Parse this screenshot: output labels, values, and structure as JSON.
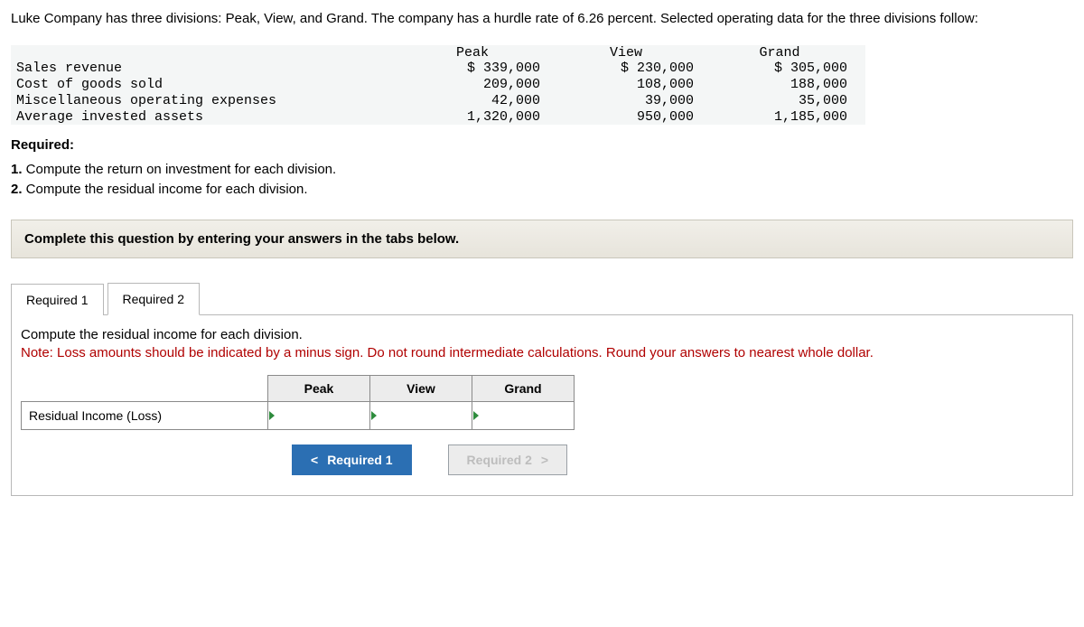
{
  "intro": "Luke Company has three divisions: Peak, View, and Grand. The company has a hurdle rate of 6.26 percent. Selected operating data for the three divisions follow:",
  "data_table": {
    "headers": {
      "c1": "Peak",
      "c2": "View",
      "c3": "Grand"
    },
    "rows": [
      {
        "label": "Sales revenue",
        "c1": "$ 339,000",
        "c2": "$ 230,000",
        "c3": "$ 305,000"
      },
      {
        "label": "Cost of goods sold",
        "c1": "209,000",
        "c2": "108,000",
        "c3": "188,000"
      },
      {
        "label": "Miscellaneous operating expenses",
        "c1": "42,000",
        "c2": "39,000",
        "c3": "35,000"
      },
      {
        "label": "Average invested assets",
        "c1": "1,320,000",
        "c2": "950,000",
        "c3": "1,185,000"
      }
    ],
    "colors": {
      "bg": "#f4f6f6"
    }
  },
  "required_heading": "Required:",
  "required_items": [
    {
      "num": "1.",
      "text": " Compute the return on investment for each division."
    },
    {
      "num": "2.",
      "text": " Compute the residual income for each division."
    }
  ],
  "instruction_bar": "Complete this question by entering your answers in the tabs below.",
  "tabs": {
    "t1": "Required 1",
    "t2": "Required 2",
    "active": "t2"
  },
  "panel": {
    "line1": "Compute the residual income for each division.",
    "note": "Note: Loss amounts should be indicated by a minus sign. Do not round intermediate calculations. Round your answers to nearest whole dollar.",
    "answer_headers": {
      "c1": "Peak",
      "c2": "View",
      "c3": "Grand"
    },
    "row_label": "Residual Income (Loss)"
  },
  "nav": {
    "prev_label": "Required 1",
    "next_label": "Required 2",
    "chev_left": "<",
    "chev_right": ">"
  },
  "style": {
    "accent_blue": "#2b6fb3",
    "note_red": "#b00000",
    "tri_green": "#2e8b3d"
  }
}
